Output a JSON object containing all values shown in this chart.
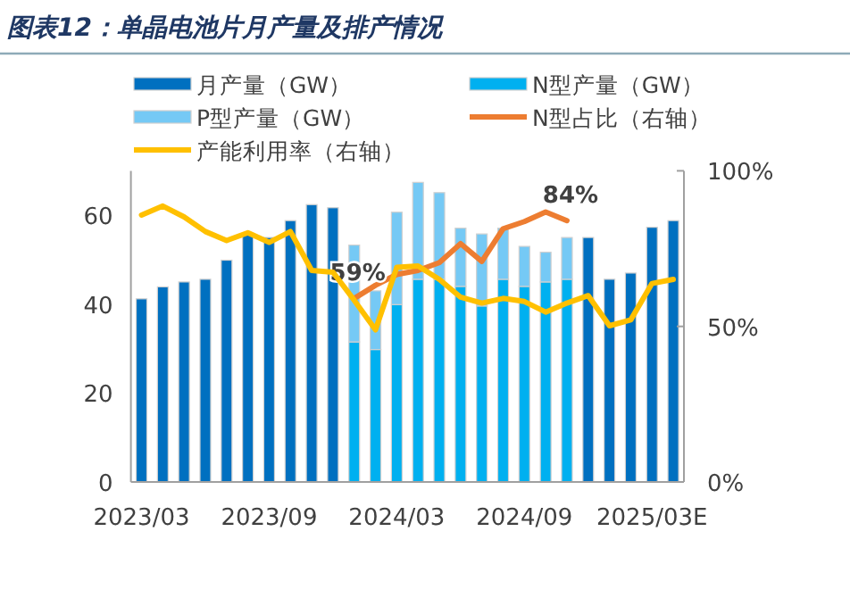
{
  "chart_data": {
    "type": "bar",
    "title": "图表12：单晶电池片月产量及排产情况",
    "categories": [
      "2023/03",
      null,
      null,
      null,
      null,
      null,
      "2023/09",
      null,
      null,
      null,
      null,
      null,
      "2024/03",
      null,
      null,
      null,
      null,
      null,
      "2024/09",
      null,
      null,
      null,
      null,
      null,
      "2025/03E",
      null
    ],
    "stacked": true,
    "legend": "top",
    "ylim": [
      0,
      70
    ],
    "yticks": [
      0,
      20,
      40,
      60
    ],
    "y2lim": [
      0,
      100
    ],
    "y2ticks": [
      {
        "value": 0,
        "label": "0%"
      },
      {
        "value": 50,
        "label": "50%"
      },
      {
        "value": 100,
        "label": "100%"
      }
    ],
    "series": [
      {
        "name": "月产量（GW）",
        "color": "#0070c0",
        "values": [
          41.2,
          43.9,
          45.0,
          45.6,
          49.9,
          56.0,
          55.0,
          58.8,
          62.4,
          61.7,
          null,
          null,
          null,
          null,
          null,
          null,
          null,
          null,
          null,
          null,
          null,
          55.0,
          45.6,
          47.0,
          57.3,
          58.8
        ]
      },
      {
        "name": "N型产量（GW）",
        "color": "#00b0f0",
        "values": [
          null,
          null,
          null,
          null,
          null,
          null,
          null,
          null,
          null,
          null,
          31.5,
          29.8,
          39.9,
          45.6,
          45.6,
          44.0,
          39.6,
          45.6,
          44.0,
          45.0,
          45.6,
          null,
          null,
          null,
          null,
          null
        ]
      },
      {
        "name": "P型产量（GW）",
        "color": "#75c9f5",
        "values": [
          null,
          null,
          null,
          null,
          null,
          null,
          null,
          null,
          null,
          null,
          21.8,
          13.2,
          20.8,
          21.8,
          19.5,
          13.1,
          16.2,
          11.5,
          9.0,
          6.7,
          9.4,
          null,
          null,
          null,
          null,
          null
        ]
      },
      {
        "name": "N型占比（右轴）",
        "type": "line",
        "axis": "y2",
        "color": "#ed7d31",
        "values": [
          null,
          null,
          null,
          null,
          null,
          null,
          null,
          null,
          null,
          null,
          59,
          63.2,
          66.7,
          68.0,
          70.5,
          76.6,
          70.9,
          81.4,
          83.7,
          86.8,
          84,
          null,
          null,
          null,
          null,
          null
        ],
        "value_labels": [
          null,
          null,
          null,
          null,
          null,
          null,
          null,
          null,
          null,
          null,
          "59%",
          null,
          null,
          null,
          null,
          null,
          null,
          null,
          null,
          null,
          "84%",
          null,
          null,
          null,
          null,
          null
        ]
      },
      {
        "name": "产能利用率（右轴）",
        "type": "line",
        "axis": "y2",
        "color": "#ffc000",
        "values": [
          85.8,
          88.7,
          85.2,
          80.5,
          77.6,
          80.1,
          77.0,
          80.5,
          68.0,
          67.4,
          58.4,
          48.9,
          69.0,
          69.4,
          65.1,
          59.4,
          57.5,
          59.0,
          58.0,
          54.6,
          57.5,
          59.9,
          50.2,
          52.1,
          63.8,
          65.1
        ]
      }
    ]
  }
}
